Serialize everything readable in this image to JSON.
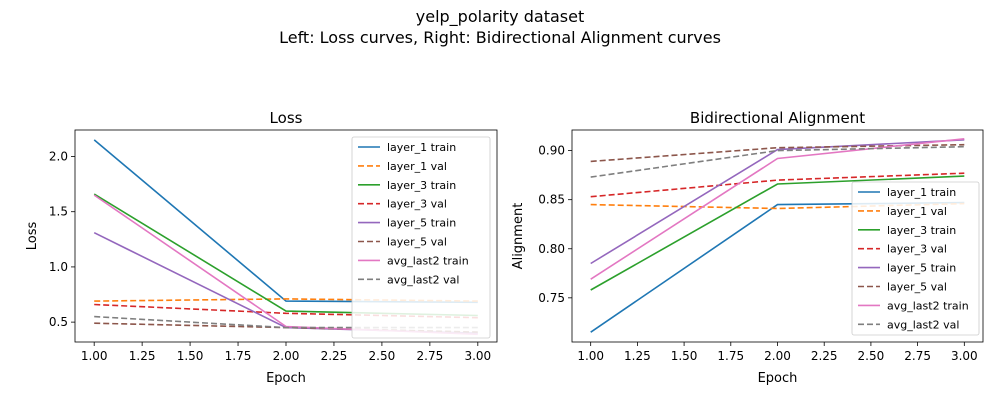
{
  "figure": {
    "title_line1": "yelp_polarity dataset",
    "title_line2": "Left: Loss curves, Right: Bidirectional Alignment curves"
  },
  "chart_data": [
    {
      "type": "line",
      "title": "Loss",
      "xlabel": "Epoch",
      "ylabel": "Loss",
      "xlim": [
        0.9,
        3.1
      ],
      "ylim": [
        0.32,
        2.24
      ],
      "xticks": [
        "1.00",
        "1.25",
        "1.50",
        "1.75",
        "2.00",
        "2.25",
        "2.50",
        "2.75",
        "3.00"
      ],
      "yticks": [
        "0.5",
        "1.0",
        "1.5",
        "2.0"
      ],
      "grid": false,
      "legend_position": "top-right",
      "x": [
        1,
        2,
        3
      ],
      "series": [
        {
          "name": "layer_1 train",
          "values": [
            2.15,
            0.69,
            0.68
          ],
          "color": "#1f77b4",
          "dashed": false
        },
        {
          "name": "layer_1 val",
          "values": [
            0.69,
            0.71,
            0.69
          ],
          "color": "#ff7f0e",
          "dashed": true
        },
        {
          "name": "layer_3 train",
          "values": [
            1.66,
            0.6,
            0.56
          ],
          "color": "#2ca02c",
          "dashed": false
        },
        {
          "name": "layer_3 val",
          "values": [
            0.66,
            0.58,
            0.54
          ],
          "color": "#d62728",
          "dashed": true
        },
        {
          "name": "layer_5 train",
          "values": [
            1.31,
            0.45,
            0.4
          ],
          "color": "#9467bd",
          "dashed": false
        },
        {
          "name": "layer_5 val",
          "values": [
            0.49,
            0.45,
            0.41
          ],
          "color": "#8c564b",
          "dashed": true
        },
        {
          "name": "avg_last2 train",
          "values": [
            1.65,
            0.46,
            0.39
          ],
          "color": "#e377c2",
          "dashed": false
        },
        {
          "name": "avg_last2 val",
          "values": [
            0.55,
            0.45,
            0.45
          ],
          "color": "#7f7f7f",
          "dashed": true
        }
      ]
    },
    {
      "type": "line",
      "title": "Bidirectional Alignment",
      "xlabel": "Epoch",
      "ylabel": "Alignment",
      "xlim": [
        0.9,
        3.1
      ],
      "ylim": [
        0.705,
        0.921
      ],
      "xticks": [
        "1.00",
        "1.25",
        "1.50",
        "1.75",
        "2.00",
        "2.25",
        "2.50",
        "2.75",
        "3.00"
      ],
      "yticks": [
        "0.75",
        "0.80",
        "0.85",
        "0.90"
      ],
      "grid": false,
      "legend_position": "center-right",
      "x": [
        1,
        2,
        3
      ],
      "series": [
        {
          "name": "layer_1 train",
          "values": [
            0.715,
            0.845,
            0.847
          ],
          "color": "#1f77b4",
          "dashed": false
        },
        {
          "name": "layer_1 val",
          "values": [
            0.845,
            0.841,
            0.846
          ],
          "color": "#ff7f0e",
          "dashed": true
        },
        {
          "name": "layer_3 train",
          "values": [
            0.758,
            0.866,
            0.874
          ],
          "color": "#2ca02c",
          "dashed": false
        },
        {
          "name": "layer_3 val",
          "values": [
            0.853,
            0.87,
            0.877
          ],
          "color": "#d62728",
          "dashed": true
        },
        {
          "name": "layer_5 train",
          "values": [
            0.785,
            0.901,
            0.911
          ],
          "color": "#9467bd",
          "dashed": false
        },
        {
          "name": "layer_5 val",
          "values": [
            0.889,
            0.903,
            0.906
          ],
          "color": "#8c564b",
          "dashed": true
        },
        {
          "name": "avg_last2 train",
          "values": [
            0.769,
            0.892,
            0.912
          ],
          "color": "#e377c2",
          "dashed": false
        },
        {
          "name": "avg_last2 val",
          "values": [
            0.873,
            0.9,
            0.904
          ],
          "color": "#7f7f7f",
          "dashed": true
        }
      ]
    }
  ]
}
